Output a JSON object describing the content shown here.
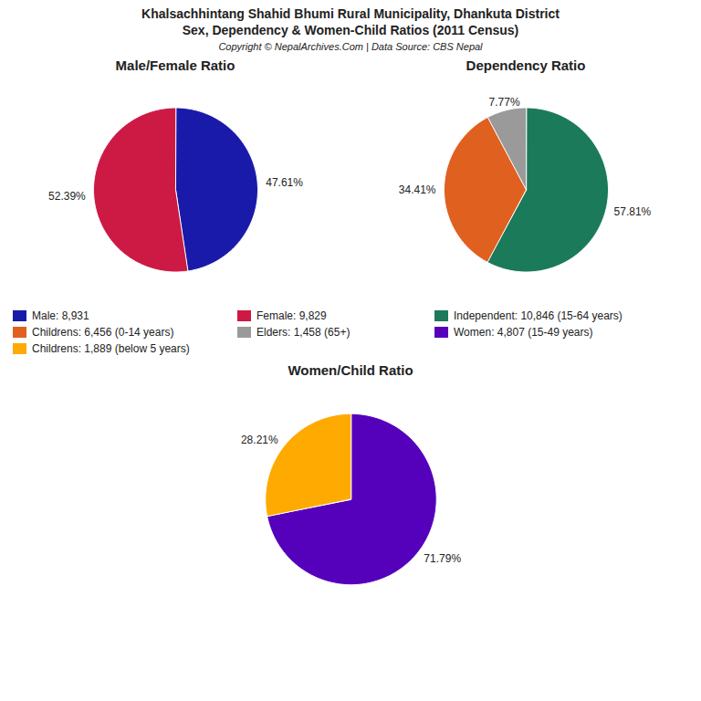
{
  "title": "Khalsachhintang Shahid Bhumi Rural Municipality, Dhankuta District",
  "subtitle": "Sex, Dependency & Women-Child Ratios (2011 Census)",
  "caption": "Copyright © NepalArchives.Com | Data Source: CBS Nepal",
  "legend": "center",
  "chart_data": [
    {
      "type": "pie",
      "title": "Male/Female Ratio",
      "categories": [
        "Male: 8,931",
        "Female: 9,829"
      ],
      "values": [
        47.61,
        52.39
      ],
      "value_labels": [
        "47.61%",
        "52.39%"
      ],
      "colors": [
        "#1a1aaa",
        "#cc1a44"
      ],
      "data_labels": true
    },
    {
      "type": "pie",
      "title": "Dependency Ratio",
      "categories": [
        "Independent: 10,846 (15-64 years)",
        "Childrens: 6,456 (0-14 years)",
        "Elders: 1,458 (65+)"
      ],
      "values": [
        57.81,
        34.41,
        7.77
      ],
      "value_labels": [
        "57.81%",
        "34.41%",
        "7.77%"
      ],
      "colors": [
        "#1a7a5a",
        "#e06020",
        "#9a9a9a"
      ],
      "data_labels": true
    },
    {
      "type": "pie",
      "title": "Women/Child Ratio",
      "categories": [
        "Women: 4,807 (15-49 years)",
        "Childrens: 1,889 (below 5 years)"
      ],
      "values": [
        71.79,
        28.21
      ],
      "value_labels": [
        "71.79%",
        "28.21%"
      ],
      "colors": [
        "#5500bb",
        "#ffaa00"
      ],
      "data_labels": true
    }
  ]
}
